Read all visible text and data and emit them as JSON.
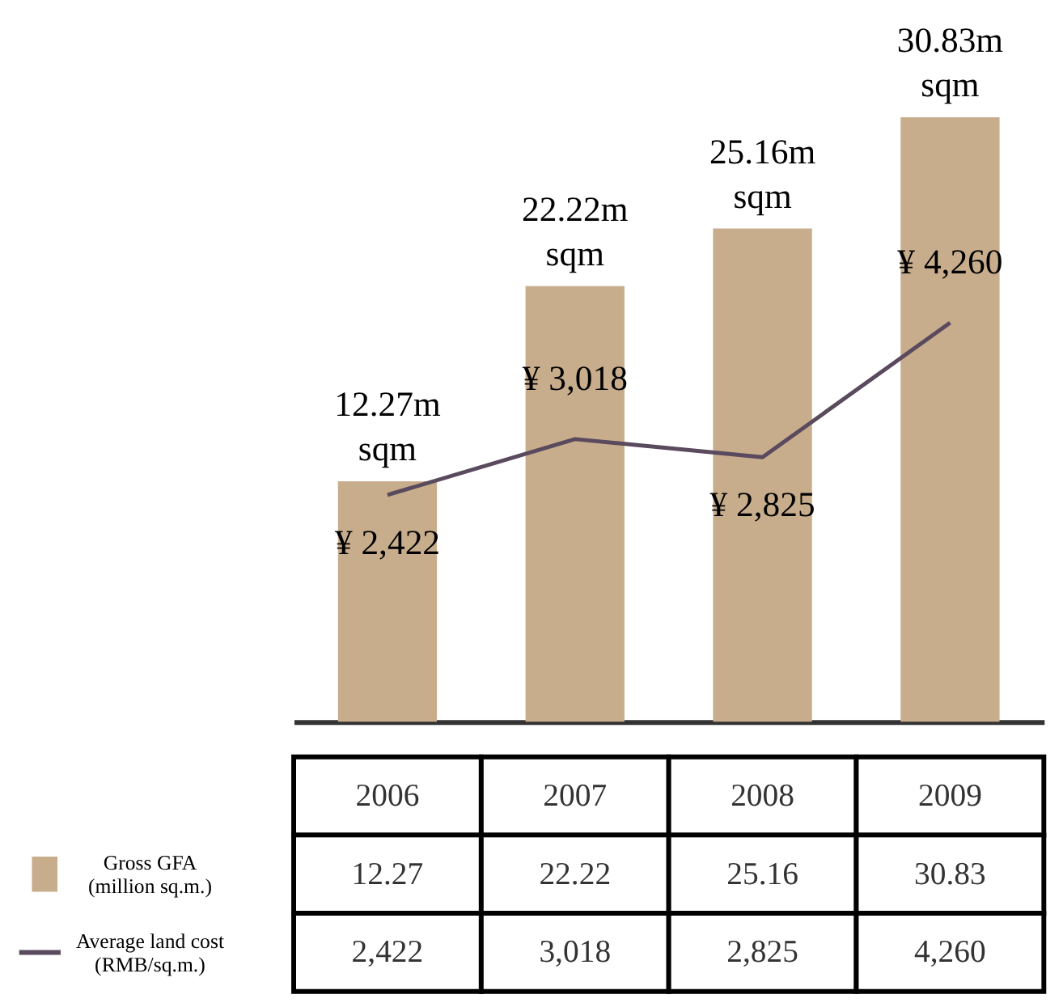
{
  "chart_data": {
    "type": "bar",
    "categories": [
      "2006",
      "2007",
      "2008",
      "2009"
    ],
    "series": [
      {
        "name": "Gross GFA\n(million sq.m.)",
        "color": "#c8ad8d",
        "values": [
          12.27,
          22.22,
          25.16,
          30.83
        ],
        "value_labels": [
          "12.27m\nsqm",
          "22.22m\nsqm",
          "25.16m\nsqm",
          "30.83m\nsqm"
        ]
      },
      {
        "name": "Average land cost\n(RMB/sq.m.)",
        "type": "line",
        "axis": "y2",
        "color": "#5a4a5e",
        "values": [
          2422,
          3018,
          2825,
          4260
        ],
        "value_labels": [
          "¥ 2,422",
          "¥ 3,018",
          "¥ 2,825",
          "¥ 4,260"
        ]
      }
    ],
    "annotations": [
      "12.27",
      "22.22",
      "25.16",
      "30.83",
      "2,422",
      "3,018",
      "2,825",
      "4,260"
    ],
    "legend": "bottom left",
    "grid": false
  }
}
